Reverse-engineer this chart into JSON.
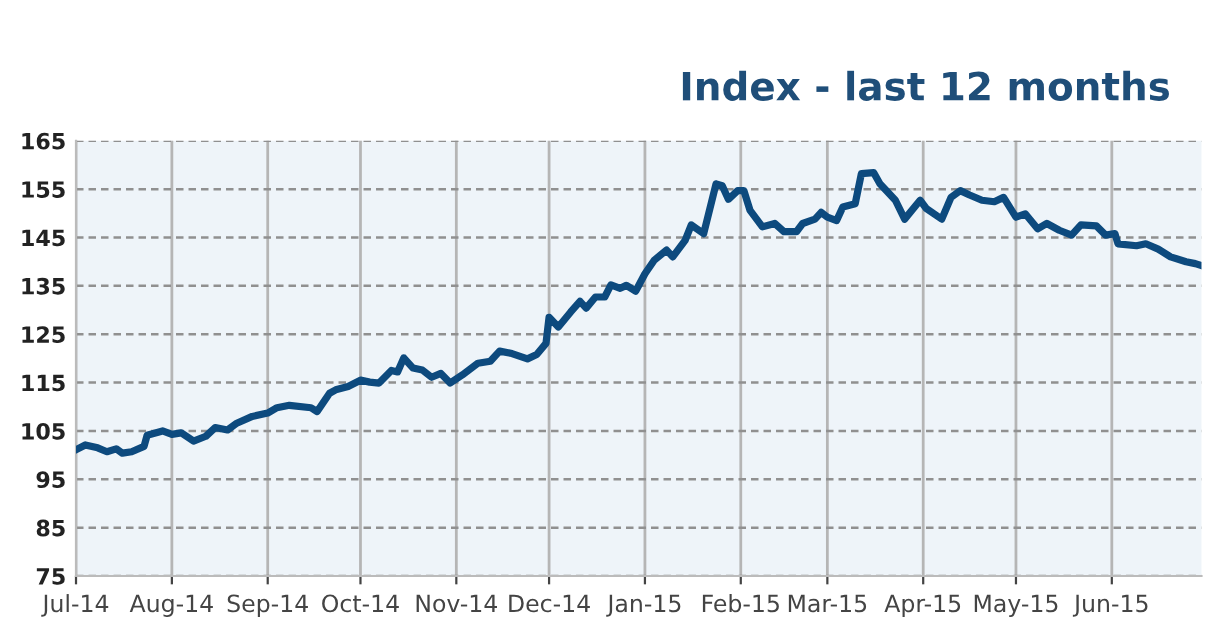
{
  "chart_data": {
    "type": "line",
    "title": "Index - last 12 months",
    "x": [
      "2014-07-01",
      "2014-07-04",
      "2014-07-08",
      "2014-07-11",
      "2014-07-14",
      "2014-07-16",
      "2014-07-19",
      "2014-07-23",
      "2014-07-24",
      "2014-07-29",
      "2014-08-01",
      "2014-08-04",
      "2014-08-08",
      "2014-08-12",
      "2014-08-15",
      "2014-08-19",
      "2014-08-22",
      "2014-08-27",
      "2014-09-01",
      "2014-09-04",
      "2014-09-08",
      "2014-09-15",
      "2014-09-17",
      "2014-09-21",
      "2014-09-23",
      "2014-09-27",
      "2014-10-01",
      "2014-10-04",
      "2014-10-07",
      "2014-10-11",
      "2014-10-13",
      "2014-10-15",
      "2014-10-18",
      "2014-10-21",
      "2014-10-24",
      "2014-10-27",
      "2014-10-30",
      "2014-11-03",
      "2014-11-08",
      "2014-11-12",
      "2014-11-15",
      "2014-11-19",
      "2014-11-24",
      "2014-11-27",
      "2014-11-30",
      "2014-12-01",
      "2014-12-04",
      "2014-12-08",
      "2014-12-11",
      "2014-12-13",
      "2014-12-16",
      "2014-12-19",
      "2014-12-21",
      "2014-12-24",
      "2014-12-26",
      "2014-12-29",
      "2015-01-01",
      "2015-01-04",
      "2015-01-08",
      "2015-01-10",
      "2015-01-14",
      "2015-01-16",
      "2015-01-20",
      "2015-01-24",
      "2015-01-26",
      "2015-01-28",
      "2015-01-31",
      "2015-02-02",
      "2015-02-04",
      "2015-02-08",
      "2015-02-12",
      "2015-02-15",
      "2015-02-19",
      "2015-02-21",
      "2015-02-25",
      "2015-02-27",
      "2015-03-01",
      "2015-03-04",
      "2015-03-06",
      "2015-03-10",
      "2015-03-12",
      "2015-03-16",
      "2015-03-18",
      "2015-03-23",
      "2015-03-26",
      "2015-03-31",
      "2015-04-02",
      "2015-04-07",
      "2015-04-10",
      "2015-04-13",
      "2015-04-16",
      "2015-04-20",
      "2015-04-24",
      "2015-04-27",
      "2015-05-01",
      "2015-05-04",
      "2015-05-08",
      "2015-05-11",
      "2015-05-15",
      "2015-05-19",
      "2015-05-22",
      "2015-05-27",
      "2015-05-30",
      "2015-06-02",
      "2015-06-03",
      "2015-06-09",
      "2015-06-12",
      "2015-06-16",
      "2015-06-20",
      "2015-06-25",
      "2015-06-28",
      "2015-06-30"
    ],
    "series": [
      {
        "color": "#0d4a7e",
        "values": [
          101.1,
          102.1,
          101.5,
          100.7,
          101.3,
          100.4,
          100.7,
          101.8,
          104.1,
          105.0,
          104.3,
          104.6,
          102.9,
          103.9,
          105.7,
          105.2,
          106.6,
          108.0,
          108.7,
          109.8,
          110.3,
          109.8,
          109.0,
          112.8,
          113.5,
          114.2,
          115.5,
          115.1,
          114.9,
          117.5,
          117.2,
          120.1,
          118.0,
          117.6,
          116.1,
          116.9,
          114.9,
          116.6,
          119.0,
          119.4,
          121.5,
          121.0,
          119.9,
          120.8,
          123.1,
          128.5,
          126.5,
          129.6,
          131.8,
          130.4,
          132.7,
          132.7,
          135.2,
          134.5,
          135.1,
          133.9,
          137.5,
          140.3,
          142.4,
          141.0,
          144.4,
          147.6,
          145.8,
          156.1,
          155.7,
          152.9,
          154.7,
          154.7,
          150.6,
          147.2,
          147.9,
          146.2,
          146.2,
          147.9,
          148.8,
          150.2,
          149.2,
          148.5,
          151.3,
          152.0,
          158.2,
          158.4,
          156.1,
          152.7,
          148.8,
          152.7,
          151.0,
          148.8,
          153.3,
          154.7,
          153.8,
          152.7,
          152.4,
          153.3,
          149.2,
          149.9,
          146.8,
          147.9,
          146.5,
          145.5,
          147.6,
          147.4,
          145.5,
          145.8,
          143.7,
          143.3,
          143.7,
          142.6,
          141.0,
          140.0,
          139.6,
          139.2
        ]
      }
    ],
    "xlim": [
      "2014-07-01",
      "2015-06-30"
    ],
    "xticks": [
      {
        "value": "2014-07-01",
        "label": "Jul-14"
      },
      {
        "value": "2014-08-01",
        "label": "Aug-14"
      },
      {
        "value": "2014-09-01",
        "label": "Sep-14"
      },
      {
        "value": "2014-10-01",
        "label": "Oct-14"
      },
      {
        "value": "2014-11-01",
        "label": "Nov-14"
      },
      {
        "value": "2014-12-01",
        "label": "Dec-14"
      },
      {
        "value": "2015-01-01",
        "label": "Jan-15"
      },
      {
        "value": "2015-02-01",
        "label": "Feb-15"
      },
      {
        "value": "2015-03-01",
        "label": "Mar-15"
      },
      {
        "value": "2015-04-01",
        "label": "Apr-15"
      },
      {
        "value": "2015-05-01",
        "label": "May-15"
      },
      {
        "value": "2015-06-01",
        "label": "Jun-15"
      }
    ],
    "ylim": [
      75,
      165
    ],
    "yticks": [
      75,
      85,
      95,
      105,
      115,
      125,
      135,
      145,
      155,
      165
    ],
    "grid": true,
    "marker": "none",
    "line_style": "solid"
  }
}
